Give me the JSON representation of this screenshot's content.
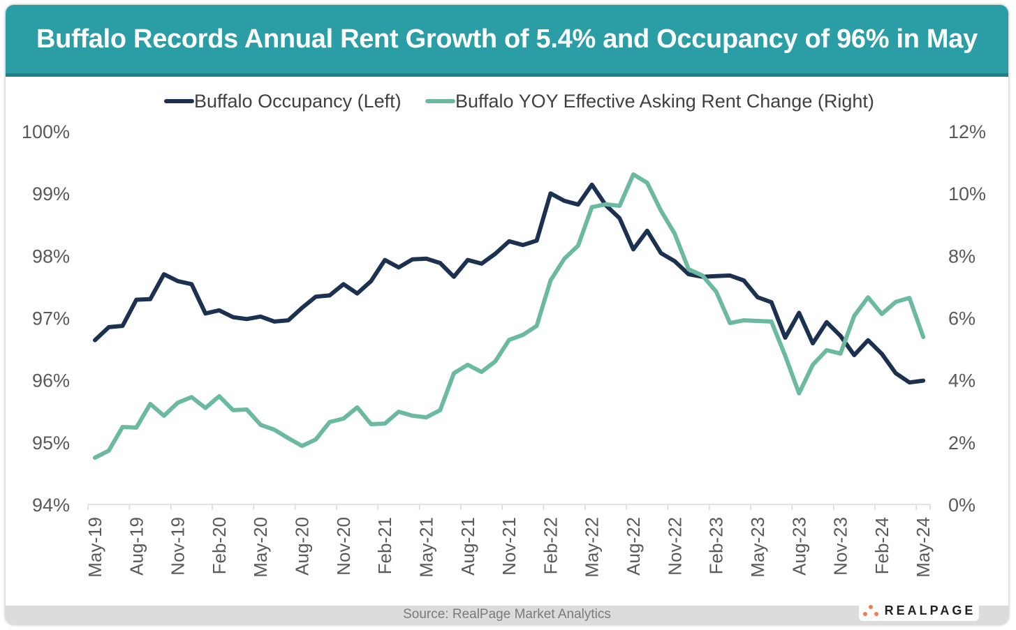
{
  "header": {
    "title": "Buffalo Records Annual Rent Growth of 5.4% and Occupancy of 96% in May"
  },
  "footer": {
    "source": "Source: RealPage Market Analytics",
    "logo_text": "REALPAGE"
  },
  "colors": {
    "header": "#2b9ea5",
    "occupancy": "#1c3150",
    "rent": "#6bbaa0",
    "logo_dots": "#f07c55"
  },
  "chart_data": {
    "type": "line",
    "title": "",
    "legend_position": "top",
    "grid": false,
    "left_axis": {
      "ticks": [
        "94%",
        "95%",
        "96%",
        "97%",
        "98%",
        "99%",
        "100%"
      ],
      "range": [
        94,
        100
      ]
    },
    "right_axis": {
      "ticks": [
        "0%",
        "2%",
        "4%",
        "6%",
        "8%",
        "10%",
        "12%"
      ],
      "range": [
        0,
        12
      ]
    },
    "x_tick_labels": [
      "May-19",
      "Aug-19",
      "Nov-19",
      "Feb-20",
      "May-20",
      "Aug-20",
      "Nov-20",
      "Feb-21",
      "May-21",
      "Aug-21",
      "Nov-21",
      "Feb-22",
      "May-22",
      "Aug-22",
      "Nov-22",
      "Feb-23",
      "May-23",
      "Aug-23",
      "Nov-23",
      "Feb-24",
      "May-24"
    ],
    "x_start": "May-19",
    "x_end": "May-24",
    "series": [
      {
        "name": "Buffalo Occupancy (Left)",
        "axis": "left",
        "values": [
          96.64,
          96.85,
          96.87,
          97.29,
          97.3,
          97.7,
          97.59,
          97.54,
          97.07,
          97.12,
          97.01,
          96.98,
          97.02,
          96.94,
          96.96,
          97.16,
          97.34,
          97.36,
          97.54,
          97.39,
          97.59,
          97.93,
          97.81,
          97.94,
          97.95,
          97.88,
          97.66,
          97.93,
          97.87,
          98.03,
          98.23,
          98.17,
          98.24,
          99.0,
          98.88,
          98.82,
          99.14,
          98.81,
          98.6,
          98.1,
          98.4,
          98.04,
          97.91,
          97.7,
          97.66,
          97.67,
          97.68,
          97.6,
          97.33,
          97.25,
          96.68,
          97.08,
          96.59,
          96.93,
          96.71,
          96.4,
          96.64,
          96.42,
          96.11,
          95.96,
          95.99
        ]
      },
      {
        "name": "Buffalo YOY Effective Asking Rent Change (Right)",
        "axis": "right",
        "values": [
          1.5,
          1.73,
          2.49,
          2.47,
          3.23,
          2.85,
          3.27,
          3.45,
          3.1,
          3.48,
          3.03,
          3.05,
          2.56,
          2.4,
          2.13,
          1.88,
          2.09,
          2.65,
          2.76,
          3.12,
          2.58,
          2.6,
          2.98,
          2.85,
          2.8,
          3.03,
          4.22,
          4.49,
          4.26,
          4.6,
          5.29,
          5.45,
          5.74,
          7.2,
          7.9,
          8.32,
          9.56,
          9.65,
          9.6,
          10.61,
          10.34,
          9.44,
          8.7,
          7.56,
          7.36,
          6.84,
          5.83,
          5.92,
          5.9,
          5.88,
          4.78,
          3.57,
          4.49,
          4.96,
          4.85,
          6.06,
          6.66,
          6.12,
          6.51,
          6.64,
          5.38
        ]
      }
    ]
  }
}
